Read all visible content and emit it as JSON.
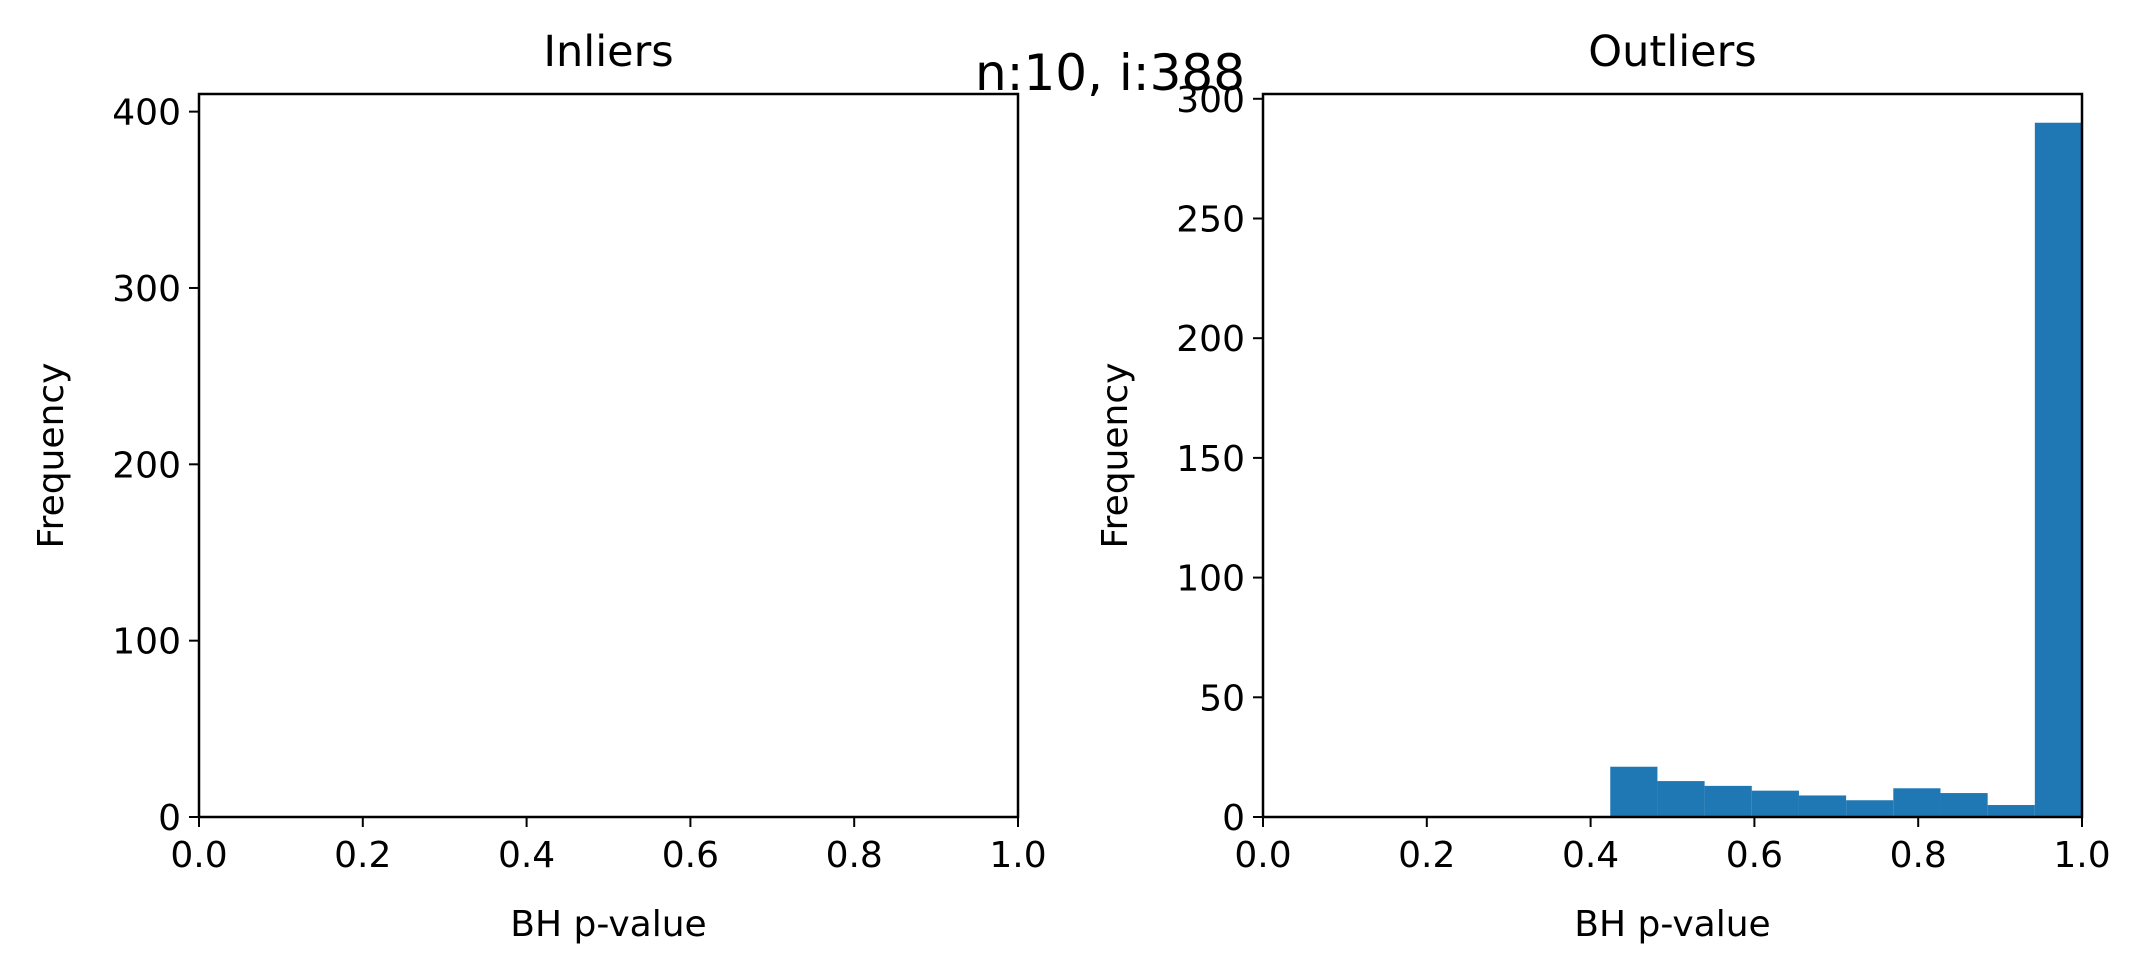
{
  "figure": {
    "suptitle": "n:10, i:388"
  },
  "chart_data": [
    {
      "type": "bar",
      "title": "Inliers",
      "xlabel": "BH p-value",
      "ylabel": "Frequency",
      "xlim": [
        0.0,
        1.0
      ],
      "ylim": [
        0,
        410
      ],
      "xticks": [
        "0.0",
        "0.2",
        "0.4",
        "0.6",
        "0.8",
        "1.0"
      ],
      "yticks": [
        "0",
        "100",
        "200",
        "300",
        "400"
      ],
      "bins": [],
      "bar_color": "#1f77b4",
      "grid": false
    },
    {
      "type": "bar",
      "title": "Outliers",
      "xlabel": "BH p-value",
      "ylabel": "Frequency",
      "xlim": [
        0.0,
        1.0
      ],
      "ylim": [
        0,
        302
      ],
      "xticks": [
        "0.0",
        "0.2",
        "0.4",
        "0.6",
        "0.8",
        "1.0"
      ],
      "yticks": [
        "0",
        "50",
        "100",
        "150",
        "200",
        "250",
        "300"
      ],
      "bins": [
        {
          "x0": 0.424,
          "x1": 0.4816,
          "value": 21
        },
        {
          "x0": 0.4816,
          "x1": 0.5392,
          "value": 15
        },
        {
          "x0": 0.5392,
          "x1": 0.5968,
          "value": 13
        },
        {
          "x0": 0.5968,
          "x1": 0.6544,
          "value": 11
        },
        {
          "x0": 0.6544,
          "x1": 0.712,
          "value": 9
        },
        {
          "x0": 0.712,
          "x1": 0.7696,
          "value": 7
        },
        {
          "x0": 0.7696,
          "x1": 0.8272,
          "value": 12
        },
        {
          "x0": 0.8272,
          "x1": 0.8848,
          "value": 10
        },
        {
          "x0": 0.8848,
          "x1": 0.9424,
          "value": 5
        },
        {
          "x0": 0.9424,
          "x1": 1.0,
          "value": 290
        }
      ],
      "bar_color": "#1f77b4",
      "grid": false
    }
  ]
}
